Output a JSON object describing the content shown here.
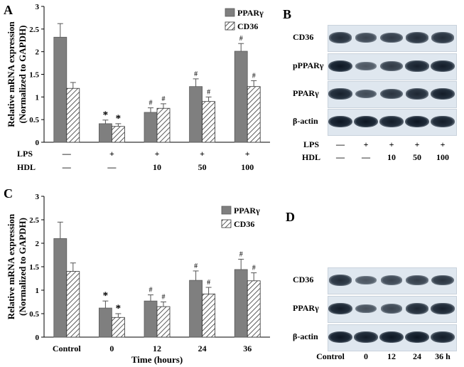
{
  "panels": {
    "a": "A",
    "b": "B",
    "c": "C",
    "d": "D"
  },
  "colors": {
    "ppar_fill": "#7f7f7f",
    "ppar_stroke": "#5a5a5a",
    "cd36_hatch": "#333333",
    "band_dark": "#0d1622",
    "strip_bg": "#dfe7ef"
  },
  "chart_data": [
    {
      "panel": "A",
      "type": "bar",
      "ylabel_line1": "Relative mRNA expression",
      "ylabel_line2": "(Normalized to GAPDH)",
      "ylim": [
        0,
        3
      ],
      "yticks": [
        "0",
        "0.5",
        "1",
        "1.5",
        "2",
        "2.5",
        "3"
      ],
      "legend": [
        "PPARγ",
        "CD36"
      ],
      "legend_position": "top-right",
      "row1_label": "LPS",
      "row2_label": "HDL",
      "row1": [
        "—",
        "+",
        "+",
        "+",
        "+"
      ],
      "row2": [
        "—",
        "—",
        "10",
        "50",
        "100"
      ],
      "series": [
        {
          "name": "PPARγ",
          "values": [
            2.32,
            0.41,
            0.66,
            1.23,
            2.01
          ],
          "errors": [
            0.3,
            0.08,
            0.1,
            0.17,
            0.17
          ],
          "marks": [
            "",
            "*",
            "#",
            "#",
            "#"
          ]
        },
        {
          "name": "CD36",
          "values": [
            1.19,
            0.35,
            0.75,
            0.9,
            1.23
          ],
          "errors": [
            0.13,
            0.06,
            0.1,
            0.1,
            0.13
          ],
          "marks": [
            "",
            "*",
            "#",
            "#",
            "#"
          ]
        }
      ]
    },
    {
      "panel": "C",
      "type": "bar",
      "ylabel_line1": "Relative mRNA expression",
      "ylabel_line2": "(Normalized to GAPDH)",
      "ylim": [
        0,
        3
      ],
      "yticks": [
        "0",
        "0.5",
        "1",
        "1.5",
        "2",
        "2.5",
        "3"
      ],
      "legend": [
        "PPARγ",
        "CD36"
      ],
      "legend_position": "top-right",
      "categories": [
        "Control",
        "0",
        "12",
        "24",
        "36"
      ],
      "xlabel": "Time (hours)",
      "series": [
        {
          "name": "PPARγ",
          "values": [
            2.1,
            0.62,
            0.77,
            1.21,
            1.44
          ],
          "errors": [
            0.35,
            0.15,
            0.13,
            0.2,
            0.22
          ],
          "marks": [
            "",
            "*",
            "#",
            "#",
            "#"
          ]
        },
        {
          "name": "CD36",
          "values": [
            1.4,
            0.42,
            0.65,
            0.92,
            1.2
          ],
          "errors": [
            0.18,
            0.08,
            0.1,
            0.14,
            0.17
          ],
          "marks": [
            "",
            "*",
            "#",
            "#",
            "#"
          ]
        }
      ]
    }
  ],
  "blot_b": {
    "rows": [
      "CD36",
      "pPPARγ",
      "PPARγ",
      "β-actin"
    ],
    "lps_label": "LPS",
    "hdl_label": "HDL",
    "lps": [
      "—",
      "+",
      "+",
      "+",
      "+"
    ],
    "hdl": [
      "—",
      "—",
      "10",
      "50",
      "100"
    ],
    "intensity": [
      [
        0.8,
        0.6,
        0.7,
        0.8,
        0.8
      ],
      [
        1.0,
        0.45,
        0.7,
        0.9,
        0.95
      ],
      [
        0.9,
        0.55,
        0.75,
        0.85,
        0.95
      ],
      [
        1.0,
        1.0,
        0.95,
        1.0,
        0.95
      ]
    ]
  },
  "blot_d": {
    "rows": [
      "CD36",
      "PPARγ",
      "β-actin"
    ],
    "lanes": [
      "Control",
      "0",
      "12",
      "24",
      "36 h"
    ],
    "intensity": [
      [
        0.8,
        0.45,
        0.6,
        0.65,
        0.75
      ],
      [
        0.95,
        0.5,
        0.6,
        0.85,
        0.9
      ],
      [
        1.0,
        0.95,
        1.0,
        1.0,
        0.95
      ]
    ]
  }
}
